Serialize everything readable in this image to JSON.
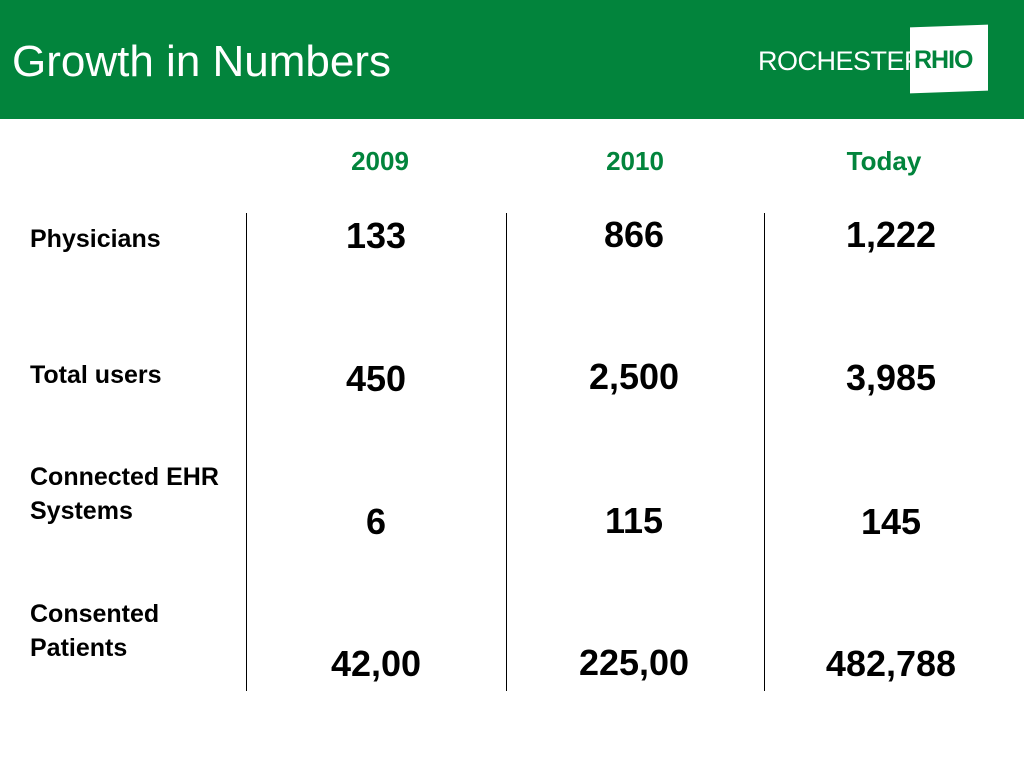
{
  "slide": {
    "title": "Growth in Numbers",
    "logo": {
      "text": "ROCHESTER",
      "box_text": "RHIO"
    }
  },
  "table": {
    "columns": [
      "2009",
      "2010",
      "Today"
    ],
    "rows": [
      {
        "label": "Physicians",
        "values": [
          "133",
          "866",
          "1,222"
        ]
      },
      {
        "label": "Total users",
        "values": [
          "450",
          "2,500",
          "3,985"
        ]
      },
      {
        "label": "Connected EHR Systems",
        "values": [
          "6",
          "115",
          "145"
        ]
      },
      {
        "label": "Consented Patients",
        "values": [
          "42,00",
          "225,00",
          "482,788"
        ]
      }
    ]
  },
  "colors": {
    "brand_green": "#02843c",
    "text": "#000000",
    "background": "#ffffff"
  }
}
